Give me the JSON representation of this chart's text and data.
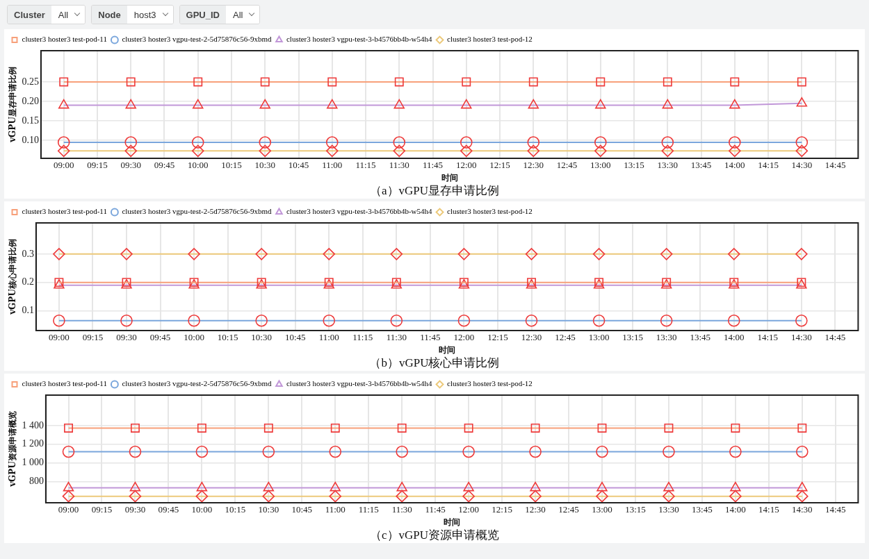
{
  "chart_data": [
    {
      "type": "line",
      "title": "（a）vGPU显存申请比例",
      "xlabel": "时间",
      "ylabel": "vGPU显存申请比例",
      "annotations": [
        "Cluster",
        "All",
        "Node",
        "host3",
        "GPU_ID",
        "All"
      ],
      "x": [
        9,
        9.5,
        10,
        10.5,
        11,
        11.5,
        12,
        12.5,
        13,
        13.5,
        14,
        14.5
      ],
      "series": [
        {
          "name": "cluster3 hoster3 test-pod-11",
          "color": "#f7a07a",
          "marker": "square",
          "values": [
            0.25,
            0.25,
            0.25,
            0.25,
            0.25,
            0.25,
            0.25,
            0.25,
            0.25,
            0.25,
            0.25,
            0.25
          ]
        },
        {
          "name": "cluster3 hoster3 vgpu-test-2-5d75876c56-9xbmd",
          "color": "#7aa6dc",
          "marker": "circle",
          "values": [
            0.095,
            0.095,
            0.095,
            0.095,
            0.095,
            0.095,
            0.095,
            0.095,
            0.095,
            0.095,
            0.095,
            0.095
          ]
        },
        {
          "name": "cluster3 hoster3 vgpu-test-3-b4576bb4b-w54h4",
          "color": "#c197d8",
          "marker": "triangle",
          "values": [
            0.19,
            0.19,
            0.19,
            0.19,
            0.19,
            0.19,
            0.19,
            0.19,
            0.19,
            0.19,
            0.19,
            0.195
          ]
        },
        {
          "name": "cluster3 hoster3 test-pod-12",
          "color": "#ecc97a",
          "marker": "diamond",
          "values": [
            0.073,
            0.073,
            0.073,
            0.073,
            0.073,
            0.073,
            0.073,
            0.073,
            0.073,
            0.073,
            0.073,
            0.073
          ]
        }
      ],
      "xlim": [
        8.83,
        14.92
      ],
      "xticks": [
        {
          "value": 9,
          "label": "09:00"
        },
        {
          "value": 9.25,
          "label": "09:15"
        },
        {
          "value": 9.5,
          "label": "09:30"
        },
        {
          "value": 9.75,
          "label": "09:45"
        },
        {
          "value": 10,
          "label": "10:00"
        },
        {
          "value": 10.25,
          "label": "10:15"
        },
        {
          "value": 10.5,
          "label": "10:30"
        },
        {
          "value": 10.75,
          "label": "10:45"
        },
        {
          "value": 11,
          "label": "11:00"
        },
        {
          "value": 11.25,
          "label": "11:15"
        },
        {
          "value": 11.5,
          "label": "11:30"
        },
        {
          "value": 11.75,
          "label": "11:45"
        },
        {
          "value": 12,
          "label": "12:00"
        },
        {
          "value": 12.25,
          "label": "12:15"
        },
        {
          "value": 12.5,
          "label": "12:30"
        },
        {
          "value": 12.75,
          "label": "12:45"
        },
        {
          "value": 13,
          "label": "13:00"
        },
        {
          "value": 13.25,
          "label": "13:15"
        },
        {
          "value": 13.5,
          "label": "13:30"
        },
        {
          "value": 13.75,
          "label": "13:45"
        },
        {
          "value": 14,
          "label": "14:00"
        },
        {
          "value": 14.25,
          "label": "14:15"
        },
        {
          "value": 14.5,
          "label": "14:30"
        },
        {
          "value": 14.75,
          "label": "14:45"
        }
      ],
      "ylim": [
        0.054,
        0.33
      ],
      "yticks": [
        {
          "value": 0.1,
          "label": "0.10"
        },
        {
          "value": 0.15,
          "label": "0.15"
        },
        {
          "value": 0.2,
          "label": "0.20"
        },
        {
          "value": 0.25,
          "label": "0.25"
        }
      ],
      "grid": true,
      "legend": "top left",
      "line_style": "solid"
    },
    {
      "type": "line",
      "title": "（b）vGPU核心申请比例",
      "xlabel": "时间",
      "ylabel": "vGPU核心申请比例",
      "x": [
        9,
        9.5,
        10,
        10.5,
        11,
        11.5,
        12,
        12.5,
        13,
        13.5,
        14,
        14.5
      ],
      "series": [
        {
          "name": "cluster3 hoster3 test-pod-11",
          "color": "#f7a07a",
          "marker": "square",
          "values": [
            0.2,
            0.2,
            0.2,
            0.2,
            0.2,
            0.2,
            0.2,
            0.2,
            0.2,
            0.2,
            0.2,
            0.2
          ]
        },
        {
          "name": "cluster3 hoster3 vgpu-test-2-5d75876c56-9xbmd",
          "color": "#7aa6dc",
          "marker": "circle",
          "values": [
            0.065,
            0.065,
            0.065,
            0.065,
            0.065,
            0.065,
            0.065,
            0.065,
            0.065,
            0.065,
            0.065,
            0.065
          ]
        },
        {
          "name": "cluster3 hoster3 vgpu-test-3-b4576bb4b-w54h4",
          "color": "#c197d8",
          "marker": "triangle",
          "values": [
            0.19,
            0.19,
            0.19,
            0.19,
            0.19,
            0.19,
            0.19,
            0.19,
            0.19,
            0.19,
            0.19,
            0.19
          ]
        },
        {
          "name": "cluster3 hoster3 test-pod-12",
          "color": "#ecc97a",
          "marker": "diamond",
          "values": [
            0.3,
            0.3,
            0.3,
            0.3,
            0.3,
            0.3,
            0.3,
            0.3,
            0.3,
            0.3,
            0.3,
            0.3
          ]
        }
      ],
      "xlim": [
        8.83,
        14.92
      ],
      "xticks": [
        {
          "value": 9,
          "label": "09:00"
        },
        {
          "value": 9.25,
          "label": "09:15"
        },
        {
          "value": 9.5,
          "label": "09:30"
        },
        {
          "value": 9.75,
          "label": "09:45"
        },
        {
          "value": 10,
          "label": "10:00"
        },
        {
          "value": 10.25,
          "label": "10:15"
        },
        {
          "value": 10.5,
          "label": "10:30"
        },
        {
          "value": 10.75,
          "label": "10:45"
        },
        {
          "value": 11,
          "label": "11:00"
        },
        {
          "value": 11.25,
          "label": "11:15"
        },
        {
          "value": 11.5,
          "label": "11:30"
        },
        {
          "value": 11.75,
          "label": "11:45"
        },
        {
          "value": 12,
          "label": "12:00"
        },
        {
          "value": 12.25,
          "label": "12:15"
        },
        {
          "value": 12.5,
          "label": "12:30"
        },
        {
          "value": 12.75,
          "label": "12:45"
        },
        {
          "value": 13,
          "label": "13:00"
        },
        {
          "value": 13.25,
          "label": "13:15"
        },
        {
          "value": 13.5,
          "label": "13:30"
        },
        {
          "value": 13.75,
          "label": "13:45"
        },
        {
          "value": 14,
          "label": "14:00"
        },
        {
          "value": 14.25,
          "label": "14:15"
        },
        {
          "value": 14.5,
          "label": "14:30"
        },
        {
          "value": 14.75,
          "label": "14:45"
        }
      ],
      "ylim": [
        0.03,
        0.41
      ],
      "yticks": [
        0.1,
        0.2,
        0.3
      ],
      "grid": true,
      "legend": "top left",
      "line_style": "solid"
    },
    {
      "type": "line",
      "title": "（c）vGPU资源申请概览",
      "xlabel": "时间",
      "ylabel": "vGPU资源申请概览",
      "x": [
        9,
        9.5,
        10,
        10.5,
        11,
        11.5,
        12,
        12.5,
        13,
        13.5,
        14,
        14.5
      ],
      "series": [
        {
          "name": "cluster3 hoster3 test-pod-11",
          "color": "#f7a07a",
          "marker": "square",
          "values": [
            1375,
            1375,
            1375,
            1375,
            1375,
            1375,
            1375,
            1375,
            1375,
            1375,
            1375,
            1375
          ]
        },
        {
          "name": "cluster3 hoster3 vgpu-test-2-5d75876c56-9xbmd",
          "color": "#7aa6dc",
          "marker": "circle",
          "values": [
            1120,
            1120,
            1120,
            1120,
            1120,
            1120,
            1120,
            1120,
            1120,
            1120,
            1120,
            1120
          ]
        },
        {
          "name": "cluster3 hoster3 vgpu-test-3-b4576bb4b-w54h4",
          "color": "#c197d8",
          "marker": "triangle",
          "values": [
            730,
            730,
            730,
            730,
            730,
            730,
            730,
            730,
            730,
            730,
            730,
            730
          ]
        },
        {
          "name": "cluster3 hoster3 test-pod-12",
          "color": "#ecc97a",
          "marker": "diamond",
          "values": [
            640,
            640,
            640,
            640,
            640,
            640,
            640,
            640,
            640,
            640,
            640,
            640
          ]
        }
      ],
      "xlim": [
        8.83,
        14.92
      ],
      "xticks": [
        {
          "value": 9,
          "label": "09:00"
        },
        {
          "value": 9.25,
          "label": "09:15"
        },
        {
          "value": 9.5,
          "label": "09:30"
        },
        {
          "value": 9.75,
          "label": "09:45"
        },
        {
          "value": 10,
          "label": "10:00"
        },
        {
          "value": 10.25,
          "label": "10:15"
        },
        {
          "value": 10.5,
          "label": "10:30"
        },
        {
          "value": 10.75,
          "label": "10:45"
        },
        {
          "value": 11,
          "label": "11:00"
        },
        {
          "value": 11.25,
          "label": "11:15"
        },
        {
          "value": 11.5,
          "label": "11:30"
        },
        {
          "value": 11.75,
          "label": "11:45"
        },
        {
          "value": 12,
          "label": "12:00"
        },
        {
          "value": 12.25,
          "label": "12:15"
        },
        {
          "value": 12.5,
          "label": "12:30"
        },
        {
          "value": 12.75,
          "label": "12:45"
        },
        {
          "value": 13,
          "label": "13:00"
        },
        {
          "value": 13.25,
          "label": "13:15"
        },
        {
          "value": 13.5,
          "label": "13:30"
        },
        {
          "value": 13.75,
          "label": "13:45"
        },
        {
          "value": 14,
          "label": "14:00"
        },
        {
          "value": 14.25,
          "label": "14:15"
        },
        {
          "value": 14.5,
          "label": "14:30"
        },
        {
          "value": 14.75,
          "label": "14:45"
        }
      ],
      "ylim": [
        570,
        1730
      ],
      "yticks": [
        {
          "value": 800,
          "label": "800"
        },
        {
          "value": 1000,
          "label": "1 000"
        },
        {
          "value": 1200,
          "label": "1 200"
        },
        {
          "value": 1400,
          "label": "1 400"
        }
      ],
      "grid": true,
      "legend": "top left",
      "line_style": "solid"
    }
  ]
}
